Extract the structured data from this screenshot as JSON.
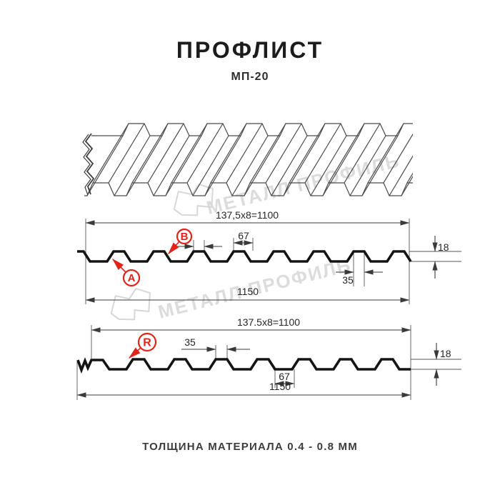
{
  "page": {
    "title": "ПРОФЛИСТ",
    "subtitle": "МП-20",
    "footer": "ТОЛЩИНА МАТЕРИАЛА 0.4 - 0.8 ММ"
  },
  "watermark": {
    "brand": "МЕТАЛЛ ПРОФИЛЬ"
  },
  "colors": {
    "accent_red": "#e2231a",
    "profile_line": "#141414",
    "dim_line": "#3a3a3a",
    "watermark_gray": "#dcdcdc"
  },
  "profile_top": {
    "dim_width_formula": "137,5x8=1100",
    "dim_total_width": "1150",
    "dim_crest_width": "35",
    "dim_valley_width": "67",
    "dim_height": "18",
    "dim_crest_width_2": "35",
    "label_a": "А",
    "label_b": "В"
  },
  "profile_bottom": {
    "dim_width_formula": "137.5x8=1100",
    "dim_total_width": "1150",
    "dim_crest_width": "35",
    "dim_valley_width": "67",
    "dim_height": "18",
    "label_r": "R"
  }
}
